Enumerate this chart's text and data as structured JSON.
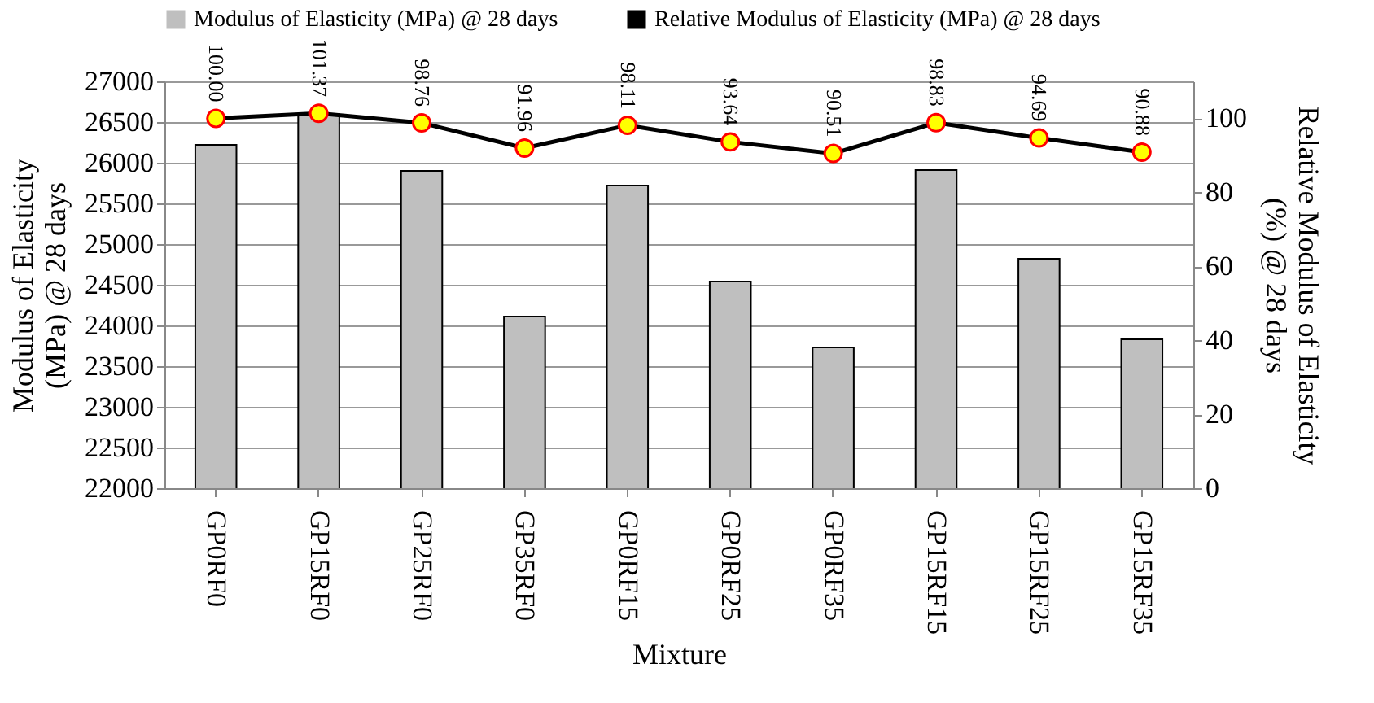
{
  "chart_data": {
    "type": "bar",
    "xlabel": "Mixture",
    "ylabel": "Modulus of Elasticity (MPa) @ 28 days",
    "y2label": "Relative Modulus of Elasticity (%) @ 28 days",
    "categories": [
      "GP0RF0",
      "GP15RF0",
      "GP25RF0",
      "GP35RF0",
      "GP0RF15",
      "GP0RF25",
      "GP0RF35",
      "GP15RF15",
      "GP15RF25",
      "GP15RF35"
    ],
    "series": [
      {
        "name": "Modulus of Elasticity (MPa) @ 28 days",
        "color": "#bfbfbf",
        "values": [
          26220,
          26600,
          25900,
          24110,
          25720,
          24540,
          23730,
          25910,
          24820,
          23830
        ]
      },
      {
        "name": "Relative Modulus of Elasticity (MPa) @ 28 days",
        "type": "line",
        "axis": "y2",
        "color": "#000000",
        "values": [
          100.0,
          101.37,
          98.76,
          91.96,
          98.11,
          93.64,
          90.51,
          98.83,
          94.69,
          90.88
        ],
        "value_labels": [
          "100.00",
          "101.37",
          "98.76",
          "91.96",
          "98.11",
          "93.64",
          "90.51",
          "98.83",
          "94.69",
          "90.88"
        ],
        "marker": "circle"
      }
    ],
    "ylim": [
      22000,
      27000
    ],
    "yticks": [
      22000,
      22500,
      23000,
      23500,
      24000,
      24500,
      25000,
      25500,
      26000,
      26500,
      27000
    ],
    "y2lim": [
      0,
      110
    ],
    "y2ticks": [
      0,
      20,
      40,
      60,
      80,
      100
    ],
    "grid": "y",
    "legend": "top"
  }
}
